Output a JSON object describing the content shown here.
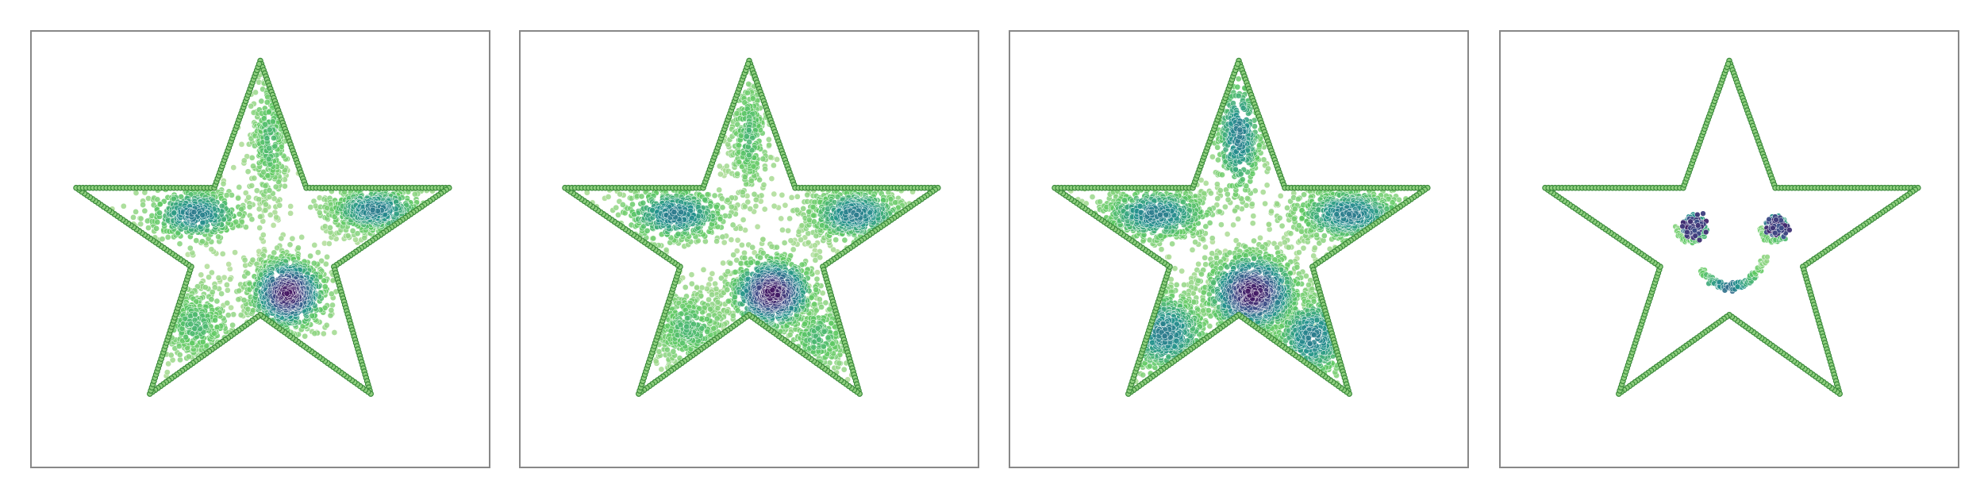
{
  "figure": {
    "background": "#ffffff",
    "frame_color": "#888888",
    "outline_color": "#3a8a3a",
    "outline_fill": "#8fcf7f",
    "colormap": [
      "#440154",
      "#3b528b",
      "#21918c",
      "#5ec962",
      "#b5de9b"
    ]
  },
  "chart_data": [
    {
      "type": "scatter",
      "title": "",
      "xlabel": "",
      "ylabel": "",
      "xlim": [
        0,
        1
      ],
      "ylim": [
        0,
        1
      ],
      "grid": false,
      "legend": "none",
      "axes_ticks": false,
      "outline": {
        "shape": "five-point star",
        "vertices": [
          [
            0.5,
            0.93
          ],
          [
            0.6,
            0.64
          ],
          [
            0.91,
            0.64
          ],
          [
            0.66,
            0.46
          ],
          [
            0.74,
            0.17
          ],
          [
            0.5,
            0.35
          ],
          [
            0.26,
            0.17
          ],
          [
            0.35,
            0.46
          ],
          [
            0.1,
            0.64
          ],
          [
            0.4,
            0.64
          ]
        ]
      },
      "clusters": [
        {
          "cx": 0.56,
          "cy": 0.4,
          "sx": 0.045,
          "sy": 0.045,
          "n": 900,
          "density": "high"
        },
        {
          "cx": 0.75,
          "cy": 0.59,
          "sx": 0.06,
          "sy": 0.03,
          "n": 550,
          "density": "medium"
        },
        {
          "cx": 0.36,
          "cy": 0.58,
          "sx": 0.06,
          "sy": 0.035,
          "n": 450,
          "density": "medium"
        },
        {
          "cx": 0.52,
          "cy": 0.75,
          "sx": 0.025,
          "sy": 0.08,
          "n": 300,
          "density": "low"
        },
        {
          "cx": 0.36,
          "cy": 0.33,
          "sx": 0.05,
          "sy": 0.05,
          "n": 350,
          "density": "low"
        }
      ]
    },
    {
      "type": "scatter",
      "title": "",
      "xlabel": "",
      "ylabel": "",
      "xlim": [
        0,
        1
      ],
      "ylim": [
        0,
        1
      ],
      "grid": false,
      "legend": "none",
      "axes_ticks": false,
      "outline": {
        "shape": "five-point star",
        "vertices": [
          [
            0.5,
            0.93
          ],
          [
            0.6,
            0.64
          ],
          [
            0.91,
            0.64
          ],
          [
            0.66,
            0.46
          ],
          [
            0.74,
            0.17
          ],
          [
            0.5,
            0.35
          ],
          [
            0.26,
            0.17
          ],
          [
            0.35,
            0.46
          ],
          [
            0.1,
            0.64
          ],
          [
            0.4,
            0.64
          ]
        ]
      },
      "clusters": [
        {
          "cx": 0.55,
          "cy": 0.4,
          "sx": 0.05,
          "sy": 0.045,
          "n": 900,
          "density": "high"
        },
        {
          "cx": 0.73,
          "cy": 0.58,
          "sx": 0.06,
          "sy": 0.035,
          "n": 600,
          "density": "medium"
        },
        {
          "cx": 0.34,
          "cy": 0.58,
          "sx": 0.065,
          "sy": 0.035,
          "n": 500,
          "density": "medium"
        },
        {
          "cx": 0.5,
          "cy": 0.76,
          "sx": 0.025,
          "sy": 0.08,
          "n": 300,
          "density": "low"
        },
        {
          "cx": 0.37,
          "cy": 0.32,
          "sx": 0.05,
          "sy": 0.05,
          "n": 400,
          "density": "low"
        },
        {
          "cx": 0.65,
          "cy": 0.3,
          "sx": 0.04,
          "sy": 0.05,
          "n": 250,
          "density": "low"
        }
      ]
    },
    {
      "type": "scatter",
      "title": "",
      "xlabel": "",
      "ylabel": "",
      "xlim": [
        0,
        1
      ],
      "ylim": [
        0,
        1
      ],
      "grid": false,
      "legend": "none",
      "axes_ticks": false,
      "outline": {
        "shape": "five-point star",
        "vertices": [
          [
            0.5,
            0.93
          ],
          [
            0.6,
            0.64
          ],
          [
            0.91,
            0.64
          ],
          [
            0.66,
            0.46
          ],
          [
            0.74,
            0.17
          ],
          [
            0.5,
            0.35
          ],
          [
            0.26,
            0.17
          ],
          [
            0.35,
            0.46
          ],
          [
            0.1,
            0.64
          ],
          [
            0.4,
            0.64
          ]
        ]
      },
      "clusters": [
        {
          "cx": 0.53,
          "cy": 0.4,
          "sx": 0.055,
          "sy": 0.05,
          "n": 1000,
          "density": "high"
        },
        {
          "cx": 0.74,
          "cy": 0.58,
          "sx": 0.07,
          "sy": 0.035,
          "n": 700,
          "density": "medium"
        },
        {
          "cx": 0.32,
          "cy": 0.58,
          "sx": 0.07,
          "sy": 0.035,
          "n": 600,
          "density": "medium"
        },
        {
          "cx": 0.5,
          "cy": 0.76,
          "sx": 0.03,
          "sy": 0.08,
          "n": 350,
          "density": "medium"
        },
        {
          "cx": 0.34,
          "cy": 0.31,
          "sx": 0.055,
          "sy": 0.055,
          "n": 550,
          "density": "medium"
        },
        {
          "cx": 0.66,
          "cy": 0.3,
          "sx": 0.05,
          "sy": 0.055,
          "n": 450,
          "density": "medium"
        }
      ]
    },
    {
      "type": "scatter",
      "title": "",
      "xlabel": "",
      "ylabel": "",
      "xlim": [
        0,
        1
      ],
      "ylim": [
        0,
        1
      ],
      "grid": false,
      "legend": "none",
      "axes_ticks": false,
      "outline": {
        "shape": "five-point star",
        "vertices": [
          [
            0.5,
            0.93
          ],
          [
            0.6,
            0.64
          ],
          [
            0.91,
            0.64
          ],
          [
            0.66,
            0.46
          ],
          [
            0.74,
            0.17
          ],
          [
            0.5,
            0.35
          ],
          [
            0.26,
            0.17
          ],
          [
            0.35,
            0.46
          ],
          [
            0.1,
            0.64
          ],
          [
            0.4,
            0.64
          ]
        ]
      },
      "features": [
        {
          "kind": "spiral-eye",
          "cx": 0.42,
          "cy": 0.55,
          "r": 0.03
        },
        {
          "kind": "spiral-eye",
          "cx": 0.6,
          "cy": 0.55,
          "r": 0.03
        },
        {
          "kind": "smile",
          "cx": 0.51,
          "cy": 0.45,
          "width": 0.14,
          "depth": 0.04
        }
      ]
    }
  ]
}
